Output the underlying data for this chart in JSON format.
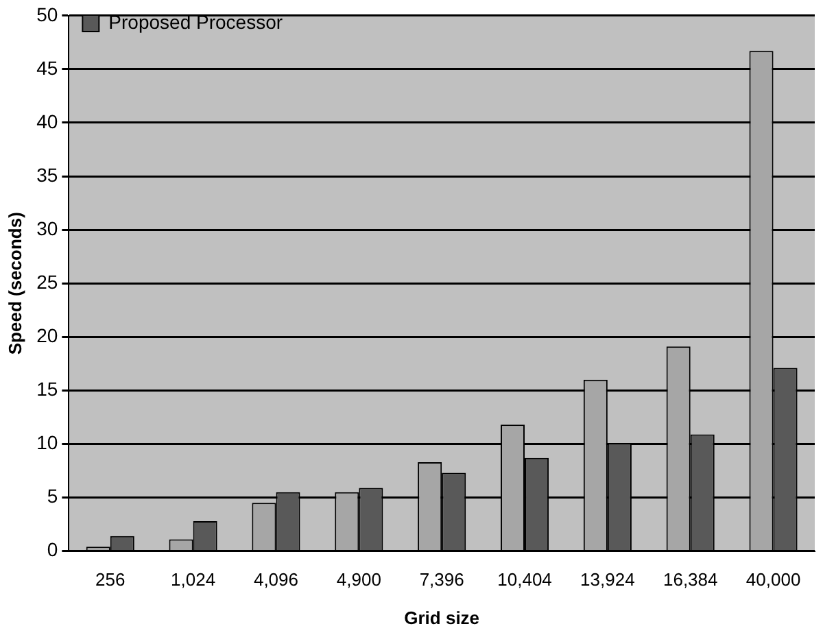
{
  "chart_data": {
    "type": "bar",
    "xlabel": "Grid size",
    "ylabel": "Speed (seconds)",
    "categories": [
      "256",
      "1,024",
      "4,096",
      "4,900",
      "7,396",
      "10,404",
      "13,924",
      "16,384",
      "40,000"
    ],
    "series": [
      {
        "color": "#a6a6a6",
        "values": [
          0.4,
          1.1,
          4.5,
          5.5,
          8.3,
          11.8,
          16,
          19.1,
          46.7
        ]
      },
      {
        "name": "Proposed Processor",
        "color": "#595959",
        "values": [
          1.4,
          2.8,
          5.5,
          5.9,
          7.3,
          8.7,
          10.1,
          10.9,
          17.1
        ]
      }
    ],
    "ylim": [
      0,
      50
    ],
    "yticks": [
      0,
      5,
      10,
      15,
      20,
      25,
      30,
      35,
      40,
      45,
      50
    ],
    "grid": "y",
    "legend": "top left"
  }
}
